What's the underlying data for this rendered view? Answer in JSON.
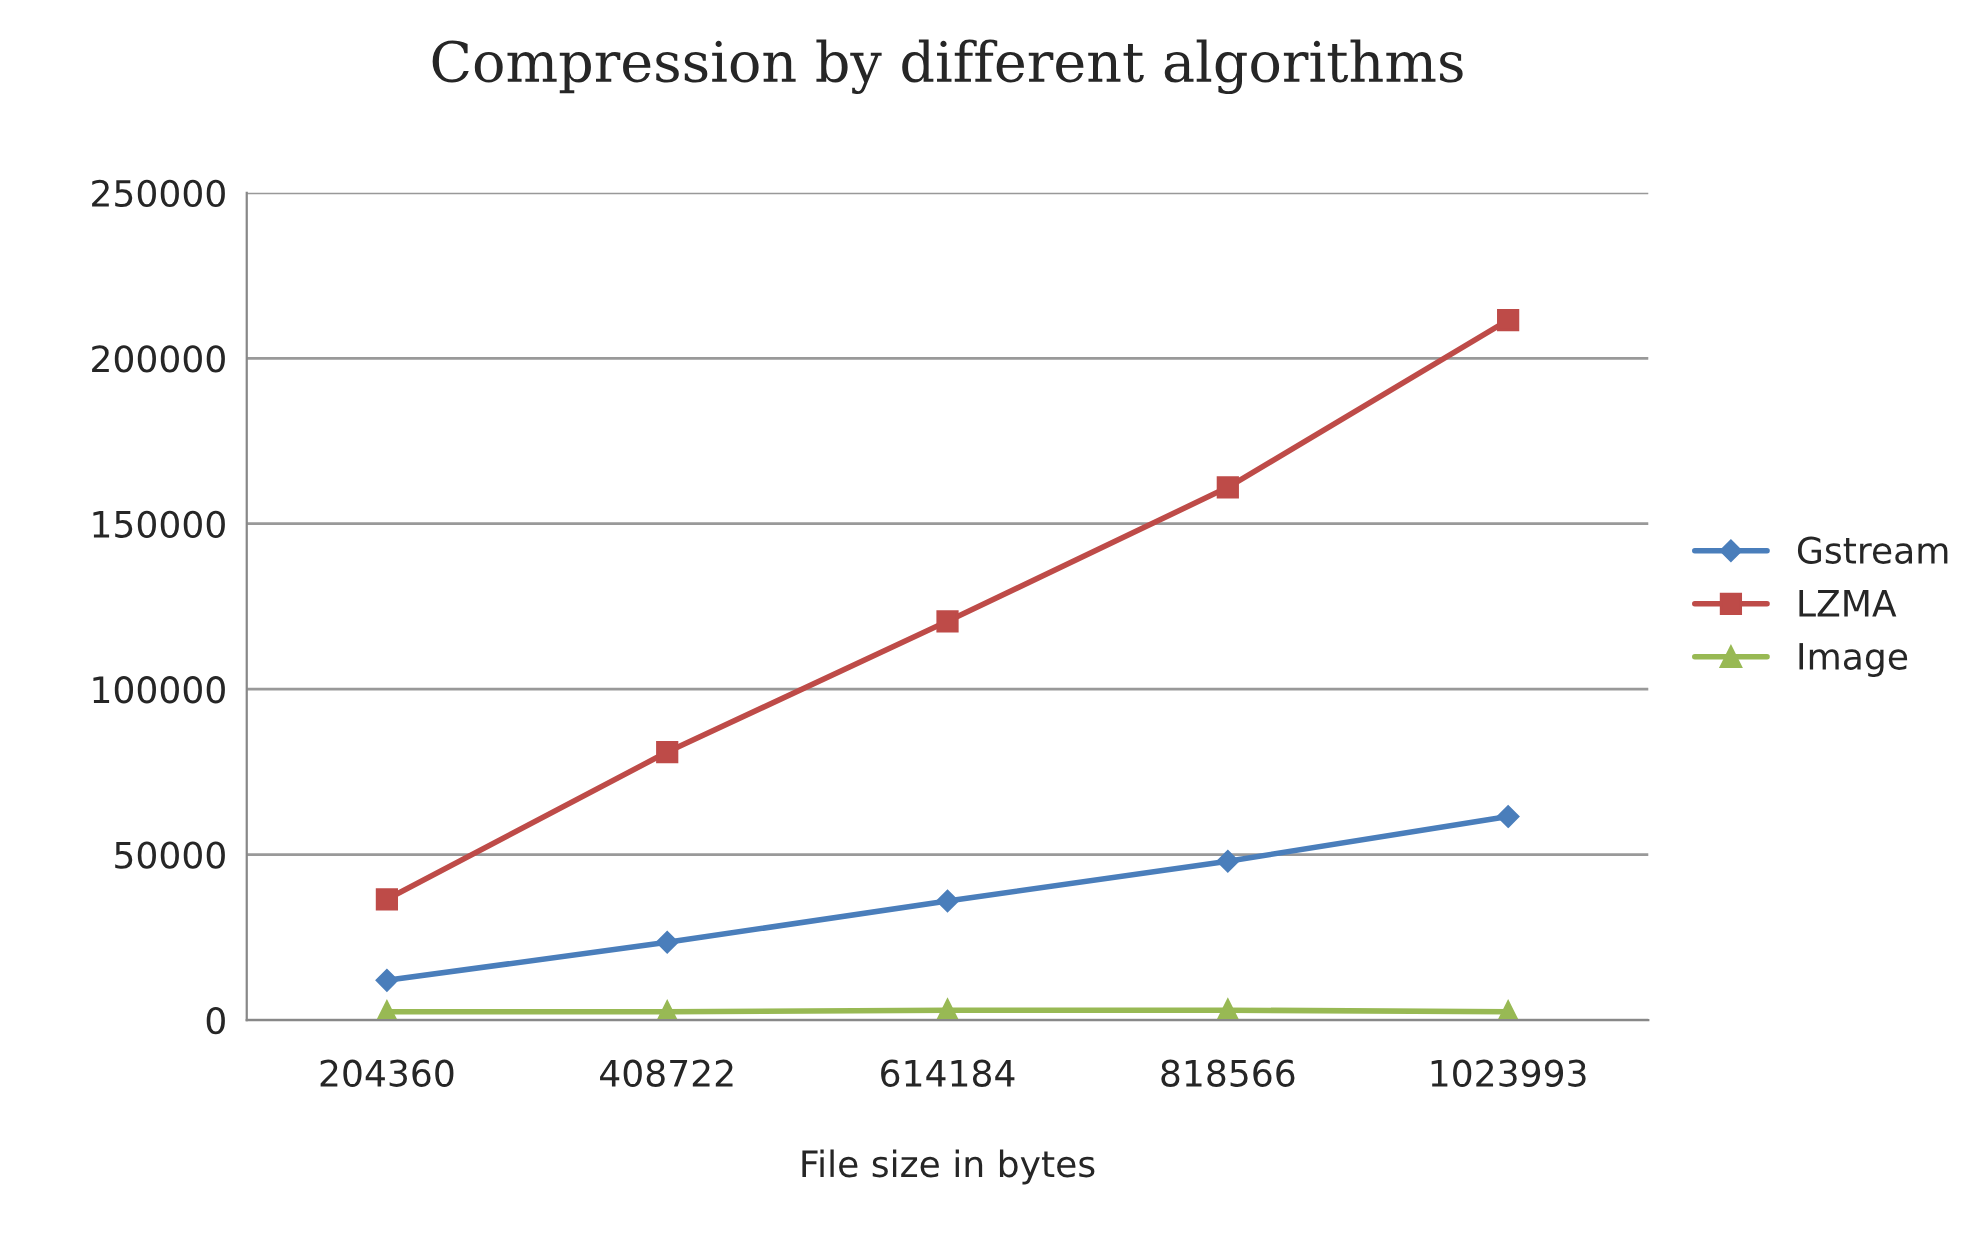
{
  "chart_data": {
    "type": "line",
    "title": "Compression by different algorithms",
    "xlabel": "File size in bytes",
    "categories": [
      "204360",
      "408722",
      "614184",
      "818566",
      "1023993"
    ],
    "series": [
      {
        "name": "Gstream",
        "color": "#4a7ebb",
        "marker": "diamond",
        "values": [
          12000,
          23500,
          36000,
          48000,
          61500
        ]
      },
      {
        "name": "LZMA",
        "color": "#be4b48",
        "marker": "square",
        "values": [
          36500,
          81000,
          120500,
          161000,
          211500
        ]
      },
      {
        "name": "Image",
        "color": "#98b954",
        "marker": "triangle",
        "values": [
          2500,
          2500,
          3000,
          3000,
          2500
        ]
      }
    ],
    "ylim": [
      0,
      250000
    ],
    "yticks": [
      0,
      50000,
      100000,
      150000,
      200000,
      250000
    ],
    "grid": "y",
    "legend": "right"
  }
}
